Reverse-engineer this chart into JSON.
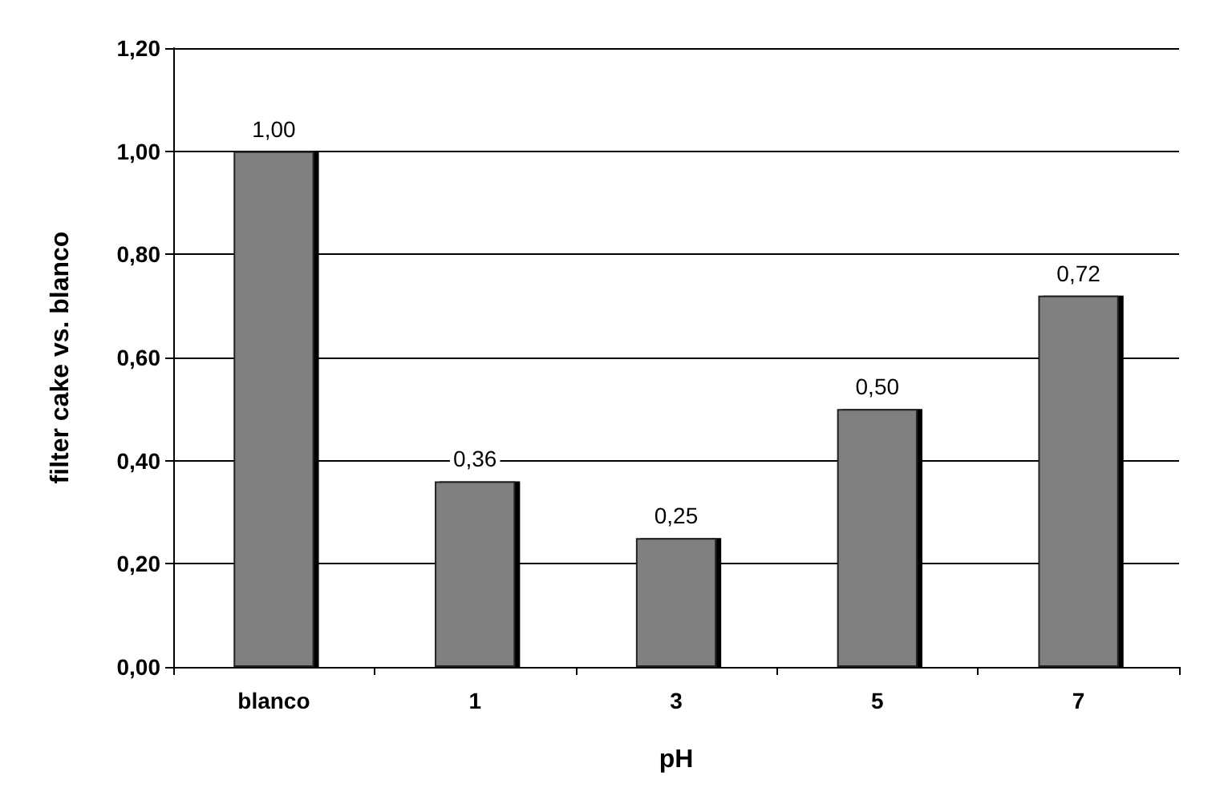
{
  "chart_data": {
    "type": "bar",
    "xlabel": "pH",
    "ylabel": "filter cake vs. blanco",
    "categories": [
      "blanco",
      "1",
      "3",
      "5",
      "7"
    ],
    "values": [
      1.0,
      0.36,
      0.25,
      0.5,
      0.72
    ],
    "value_labels": [
      "1,00",
      "0,36",
      "0,25",
      "0,50",
      "0,72"
    ],
    "color": "#808080",
    "ylim": [
      0,
      1.2
    ],
    "yticks": [
      {
        "value": 0,
        "label": "0,00"
      },
      {
        "value": 0.2,
        "label": "0,20"
      },
      {
        "value": 0.4,
        "label": "0,40"
      },
      {
        "value": 0.6,
        "label": "0,60"
      },
      {
        "value": 0.8,
        "label": "0,80"
      },
      {
        "value": 1.0,
        "label": "1,00"
      },
      {
        "value": 1.2,
        "label": "1,20"
      }
    ],
    "grid": "y"
  }
}
